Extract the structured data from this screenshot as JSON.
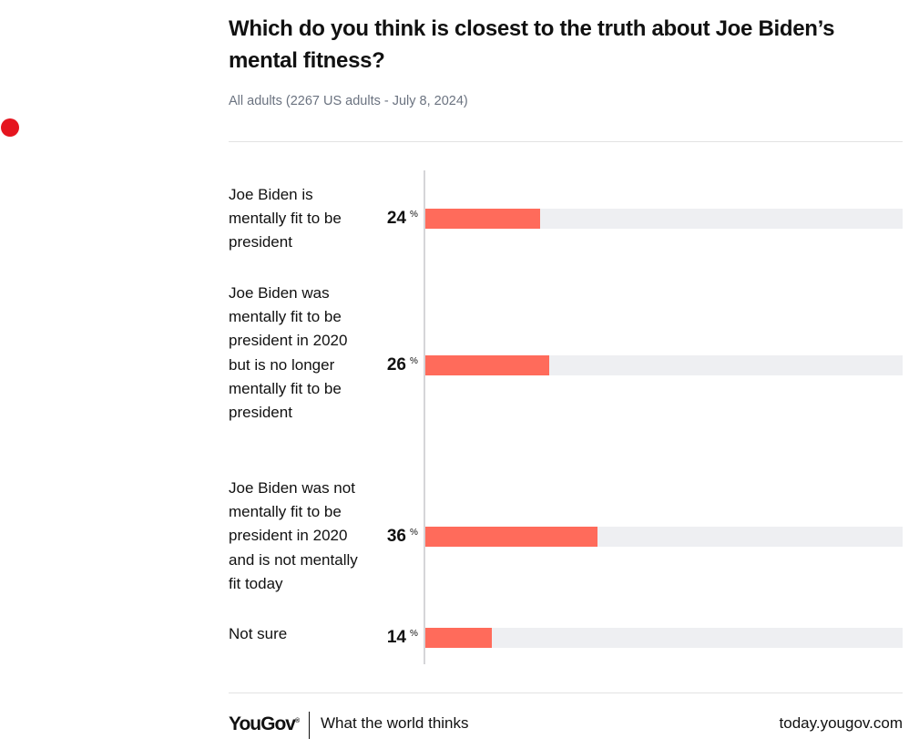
{
  "title": "Which do you think is closest to the truth about Joe Biden’s mental fitness?",
  "subtitle": "All adults (2267 US adults - July 8, 2024)",
  "footer": {
    "logo": "YouGov",
    "logo_mark": "®",
    "tagline": "What the world thinks",
    "site": "today.yougov.com"
  },
  "colors": {
    "accent_dot": "#e5151f",
    "bar": "#ff6b5b",
    "track": "#eeeff2"
  },
  "chart_data": {
    "type": "bar",
    "orientation": "horizontal",
    "categories": [
      "Joe Biden is mentally fit to be president",
      "Joe Biden was mentally fit to be president in 2020 but is no longer mentally fit to be president",
      "Joe Biden was not mentally fit to be president in 2020 and is not mentally fit today",
      "Not sure"
    ],
    "values": [
      24,
      26,
      36,
      14
    ],
    "unit": "%",
    "xlim": [
      0,
      100
    ],
    "grid": false,
    "legend": "none"
  }
}
